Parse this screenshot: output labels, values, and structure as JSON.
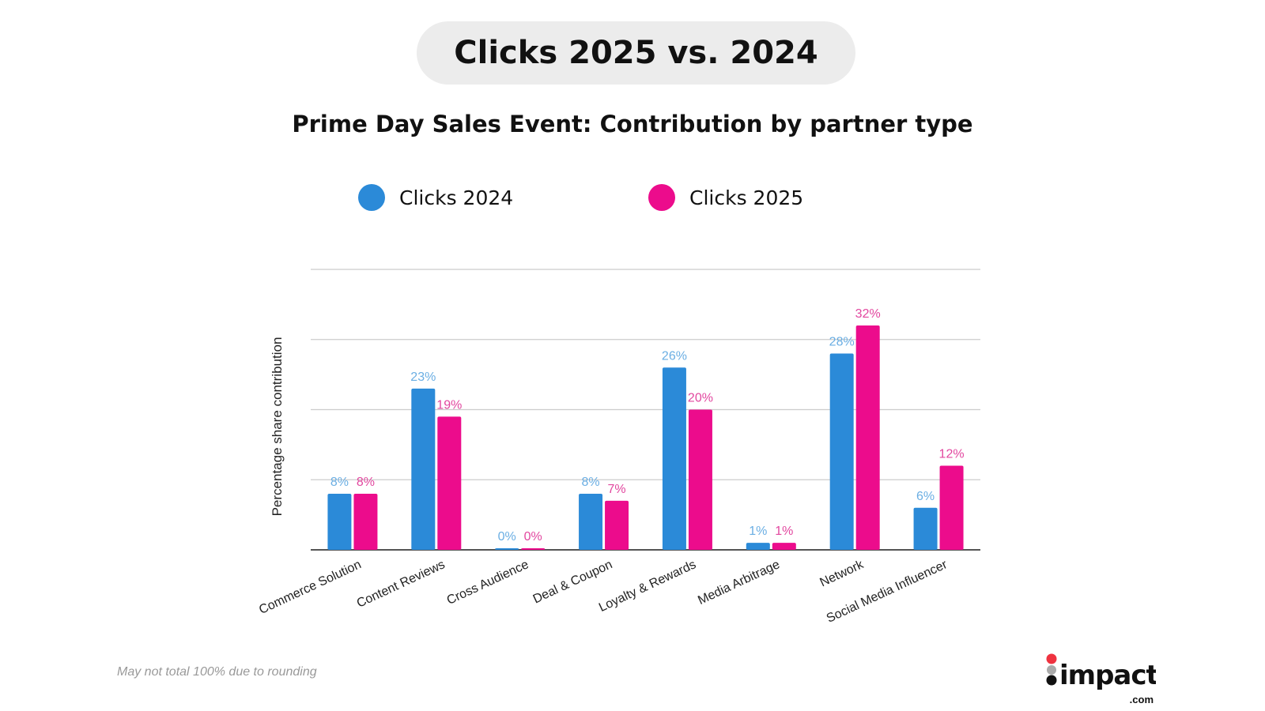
{
  "header": {
    "title": "Clicks 2025 vs. 2024"
  },
  "chart_data": {
    "type": "bar",
    "title": "Prime Day Sales Event: Contribution by partner type",
    "ylabel": "Percentage share contribution",
    "xlabel": "",
    "ylim": [
      0,
      40
    ],
    "grid": true,
    "legend_placement": "top",
    "categories": [
      "Commerce Solution",
      "Content Reviews",
      "Cross Audience",
      "Deal & Coupon",
      "Loyalty & Rewards",
      "Media Arbitrage",
      "Network",
      "Social Media Influencer"
    ],
    "series": [
      {
        "name": "Clicks 2024",
        "color": "#2b8ad8",
        "label_color": "#6aaee3",
        "values": [
          8,
          23,
          0,
          8,
          26,
          1,
          28,
          6
        ]
      },
      {
        "name": "Clicks 2025",
        "color": "#ec0c8c",
        "label_color": "#e2479f",
        "values": [
          8,
          19,
          0,
          7,
          20,
          1,
          32,
          12
        ]
      }
    ]
  },
  "footer": {
    "note": "May not total 100% due to rounding",
    "logo_text": "impact",
    "logo_suffix": ".com"
  }
}
